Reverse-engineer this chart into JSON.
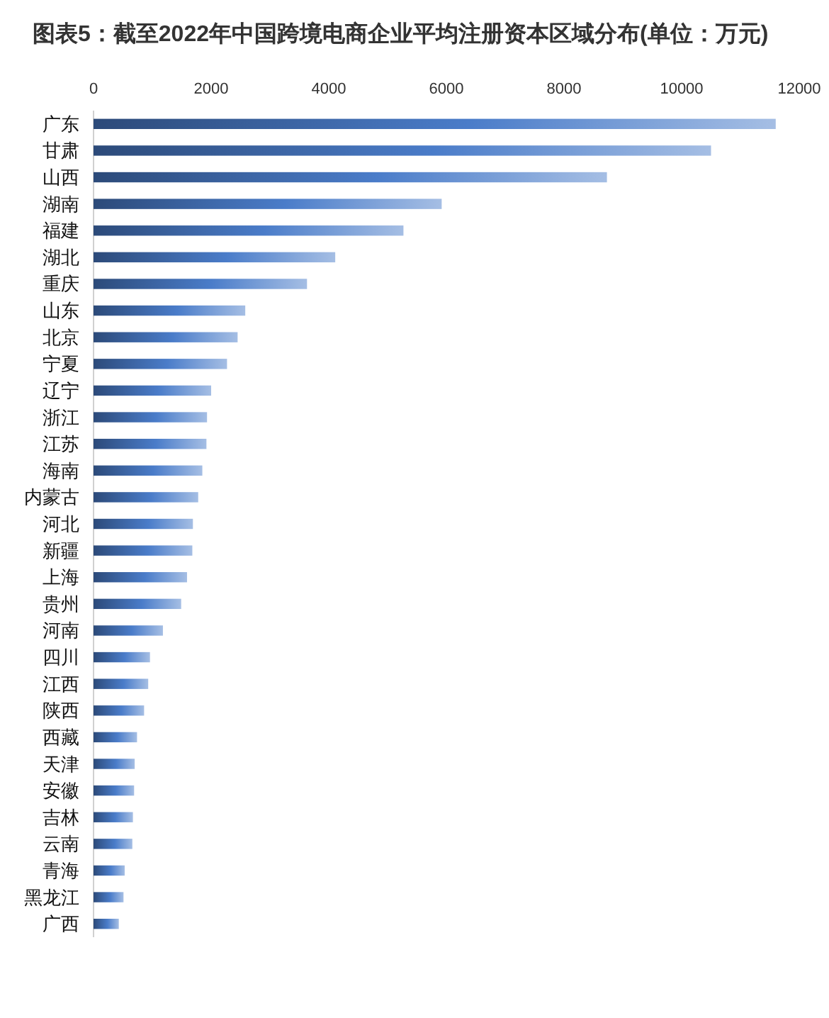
{
  "chart_data": {
    "type": "bar",
    "orientation": "horizontal",
    "title": "图表5：截至2022年中国跨境电商企业平均注册资本区域分布(单位：万元)",
    "categories": [
      "广东",
      "甘肃",
      "山西",
      "湖南",
      "福建",
      "湖北",
      "重庆",
      "山东",
      "北京",
      "宁夏",
      "辽宁",
      "浙江",
      "江苏",
      "海南",
      "内蒙古",
      "河北",
      "新疆",
      "上海",
      "贵州",
      "河南",
      "四川",
      "江西",
      "陕西",
      "西藏",
      "天津",
      "安徽",
      "吉林",
      "云南",
      "青海",
      "黑龙江",
      "广西"
    ],
    "values": [
      11600,
      10500,
      8730,
      5920,
      5270,
      4110,
      3630,
      2580,
      2450,
      2270,
      2000,
      1930,
      1920,
      1850,
      1780,
      1690,
      1680,
      1590,
      1490,
      1180,
      960,
      930,
      860,
      740,
      700,
      690,
      670,
      660,
      530,
      510,
      430
    ],
    "color": "#4a7cc9",
    "xlim": [
      0,
      12000
    ],
    "xticks": [
      0,
      2000,
      4000,
      6000,
      8000,
      10000,
      12000
    ]
  }
}
